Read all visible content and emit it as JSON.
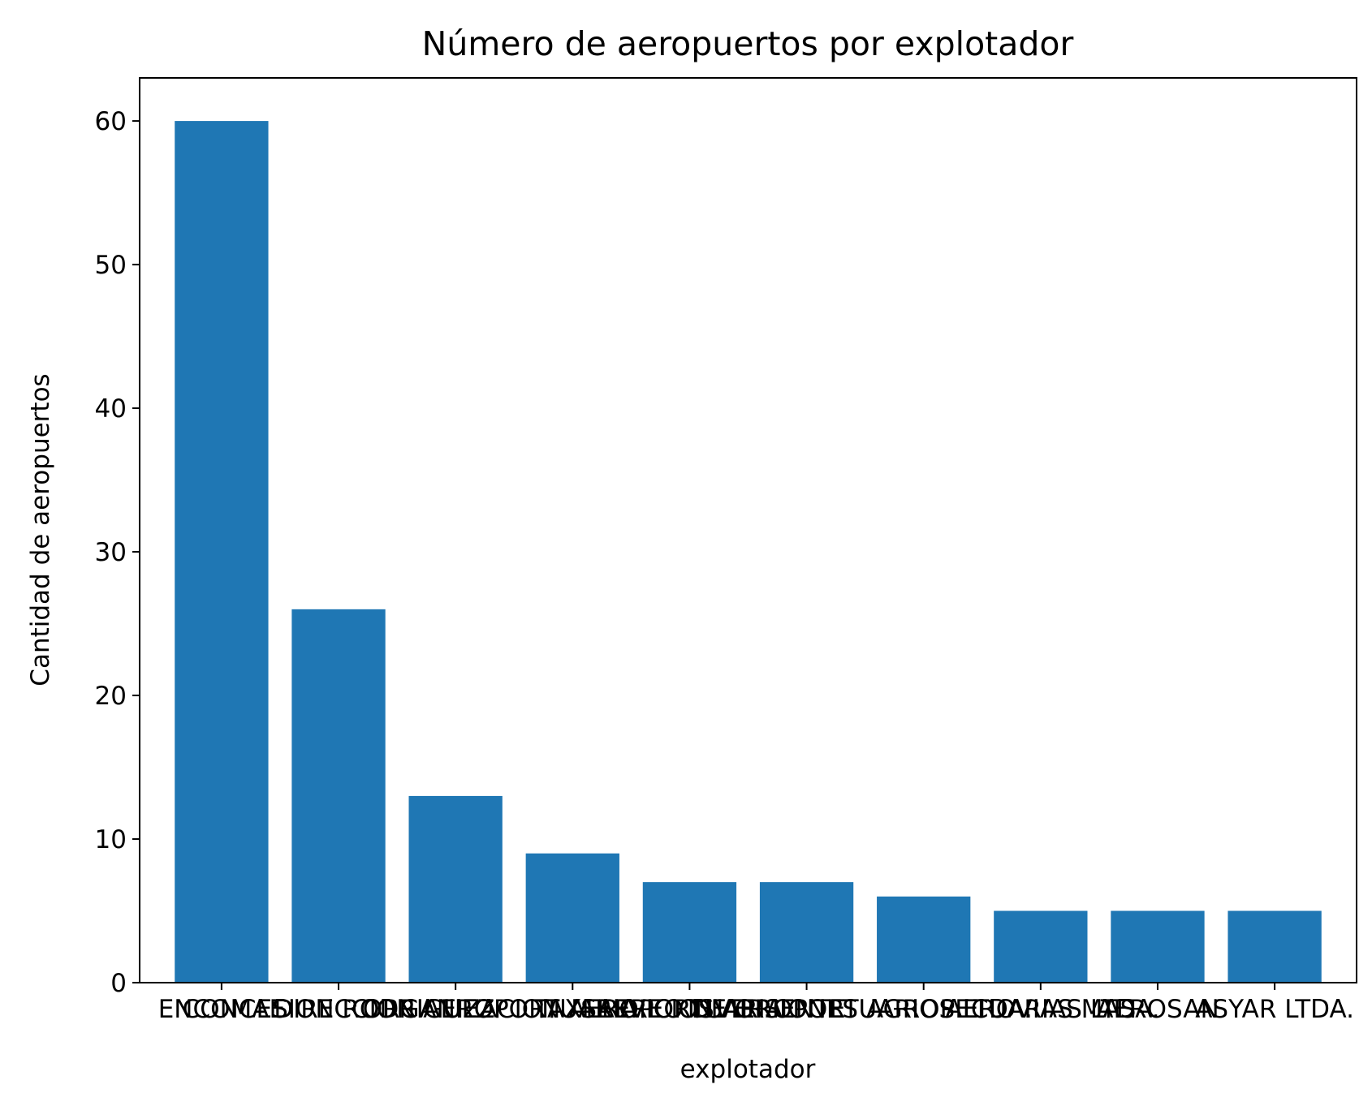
{
  "chart_data": {
    "type": "bar",
    "title": "Número de aeropuertos por explotador",
    "xlabel": "explotador",
    "ylabel": "Cantidad de aeropuertos",
    "categories": [
      "ENCOMAE",
      "CONCESION RODRIGUEZ",
      "DIRECCION AEROPORTUARIA",
      "ORGANIZACION AEROPORTUARIA",
      "TAXI AEREO DE ORIENTE",
      "SERVICIOS AEROPORTUARIOS LTDA.",
      "INVERSIONES AGROPECUARIAS LTDA.",
      "AEROVIAS MAS",
      "AEROSAN",
      "ASYAR LTDA."
    ],
    "values": [
      60,
      26,
      13,
      9,
      7,
      7,
      6,
      5,
      5,
      5
    ],
    "yticks": [
      0,
      10,
      20,
      30,
      40,
      50,
      60
    ],
    "ylim": [
      0,
      63
    ],
    "grid": false,
    "bar_color": "#1f77b4"
  }
}
